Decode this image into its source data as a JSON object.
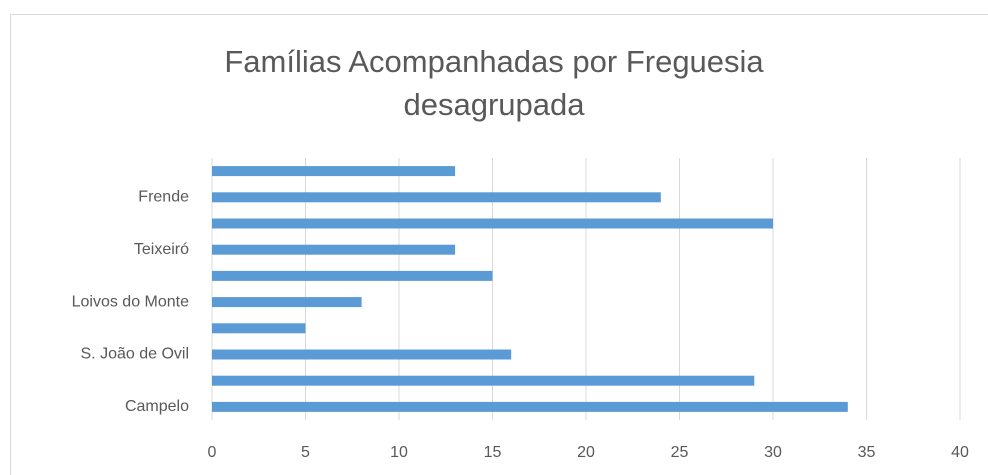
{
  "chart_data": {
    "type": "bar",
    "orientation": "horizontal",
    "title": "Famílias Acompanhadas por Freguesia desagrupada",
    "categories": [
      "Campelo",
      null,
      "S. João de Ovil",
      null,
      "Loivos do Monte",
      null,
      "Teixeiró",
      null,
      "Frende",
      null
    ],
    "values": [
      34,
      29,
      16,
      5,
      8,
      15,
      13,
      30,
      24,
      13
    ],
    "color": "#5b9bd5",
    "xlim": [
      0,
      40
    ],
    "xticks": [
      0,
      5,
      10,
      15,
      20,
      25,
      30,
      35,
      40
    ],
    "grid": true
  }
}
